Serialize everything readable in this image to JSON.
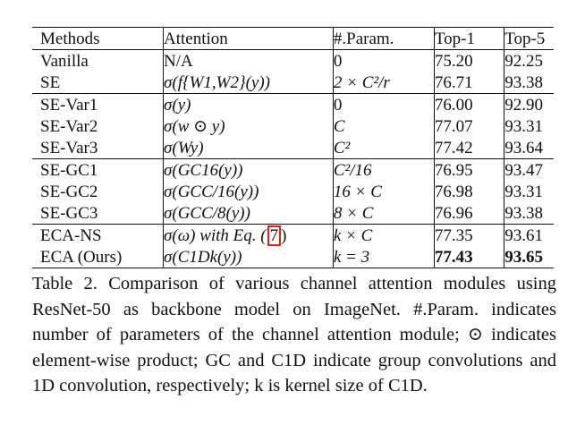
{
  "table": {
    "headers": [
      "Methods",
      "Attention",
      "#.Param.",
      "Top-1",
      "Top-5"
    ],
    "groups": [
      [
        {
          "method": "Vanilla",
          "attention": "N/A",
          "param": "0",
          "top1": "75.20",
          "top5": "92.25"
        },
        {
          "method": "SE",
          "attention": "σ(f{W1,W2}(y))",
          "param": "2 × C²/r",
          "top1": "76.71",
          "top5": "93.38"
        }
      ],
      [
        {
          "method": "SE-Var1",
          "attention": "σ(y)",
          "param": "0",
          "top1": "76.00",
          "top5": "92.90"
        },
        {
          "method": "SE-Var2",
          "attention": "σ(w ⊙ y)",
          "param": "C",
          "top1": "77.07",
          "top5": "93.31"
        },
        {
          "method": "SE-Var3",
          "attention": "σ(Wy)",
          "param": "C²",
          "top1": "77.42",
          "top5": "93.64"
        }
      ],
      [
        {
          "method": "SE-GC1",
          "attention": "σ(GC16(y))",
          "param": "C²/16",
          "top1": "76.95",
          "top5": "93.47"
        },
        {
          "method": "SE-GC2",
          "attention": "σ(GCC/16(y))",
          "param": "16 × C",
          "top1": "76.98",
          "top5": "93.31"
        },
        {
          "method": "SE-GC3",
          "attention": "σ(GCC/8(y))",
          "param": "8 × C",
          "top1": "76.96",
          "top5": "93.38"
        }
      ],
      [
        {
          "method": "ECA-NS",
          "attention": "σ(ω) with Eq. (7)",
          "param": "k × C",
          "top1": "77.35",
          "top5": "93.61"
        },
        {
          "method": "ECA (Ours)",
          "attention": "σ(C1Dk(y))",
          "param": "k = 3",
          "top1": "77.43",
          "top5": "93.65"
        }
      ]
    ],
    "eq_prefix": "σ(ω) with Eq. (",
    "eq_ref": "7",
    "eq_suffix": ")"
  },
  "caption": {
    "text": "Table 2. Comparison of various channel attention modules using ResNet-50 as backbone model on ImageNet. #.Param. indicates number of parameters of the channel attention module; ⊙ indicates element-wise product; GC and C1D indicate group convolutions and 1D convolution, respectively; k is kernel size of C1D."
  },
  "colors": {
    "citation_highlight": "#e0201b",
    "text": "#111111"
  }
}
